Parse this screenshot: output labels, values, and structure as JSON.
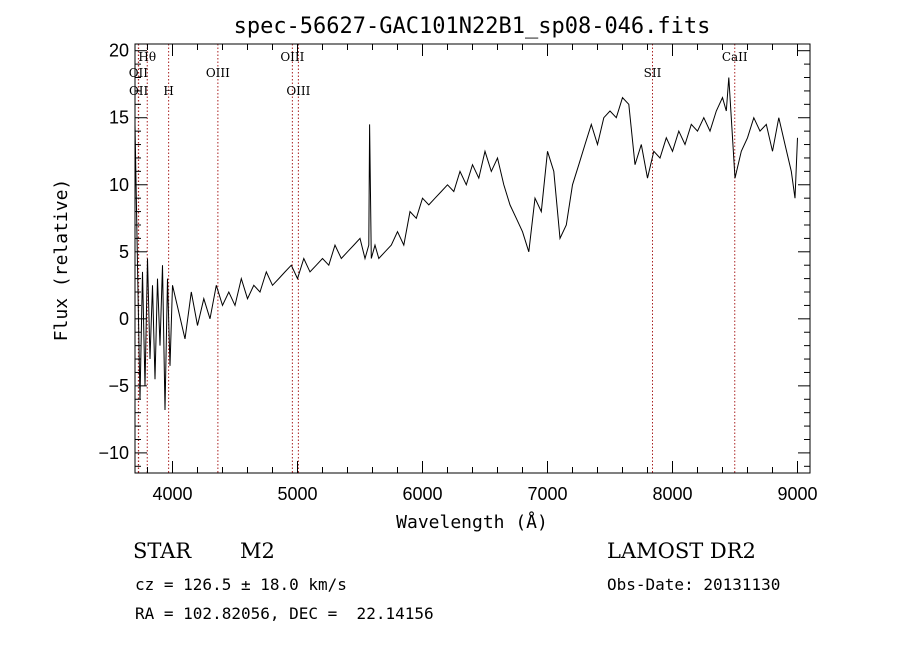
{
  "chart_data": {
    "type": "line",
    "title": "spec-56627-GAC101N22B1_sp08-046.fits",
    "xlabel": "Wavelength (Å)",
    "ylabel": "Flux (relative)",
    "xlim": [
      3700,
      9100
    ],
    "ylim": [
      -11.5,
      20.5
    ],
    "xticks": [
      4000,
      5000,
      6000,
      7000,
      8000,
      9000
    ],
    "yticks": [
      -10,
      -5,
      0,
      5,
      10,
      15,
      20
    ],
    "grid": false,
    "legend": "none",
    "line_color": "#000000",
    "marker_color": "#aa2222",
    "spectral_lines": [
      {
        "label": "Hθ",
        "wavelength": 3798,
        "row": 0
      },
      {
        "label": "OII",
        "wavelength": 3727,
        "row": 1
      },
      {
        "label": "OII",
        "wavelength": 3729,
        "row": 2
      },
      {
        "label": "H",
        "wavelength": 3969,
        "row": 2
      },
      {
        "label": "OIII",
        "wavelength": 4363,
        "row": 1
      },
      {
        "label": "OIII",
        "wavelength": 4959,
        "row": 0
      },
      {
        "label": "OIII",
        "wavelength": 5007,
        "row": 2
      },
      {
        "label": "SII",
        "wavelength": 7840,
        "row": 1
      },
      {
        "label": "CaII",
        "wavelength": 8498,
        "row": 0
      }
    ],
    "series": [
      {
        "x": [
          3700,
          3720,
          3740,
          3760,
          3780,
          3800,
          3820,
          3840,
          3860,
          3880,
          3900,
          3920,
          3940,
          3960,
          3980,
          4000,
          4050,
          4100,
          4150,
          4200,
          4250,
          4300,
          4350,
          4400,
          4450,
          4500,
          4550,
          4600,
          4650,
          4700,
          4750,
          4800,
          4850,
          4900,
          4950,
          5000,
          5050,
          5100,
          5150,
          5200,
          5250,
          5300,
          5350,
          5400,
          5450,
          5500,
          5540,
          5570,
          5577,
          5590,
          5620,
          5650,
          5700,
          5750,
          5800,
          5850,
          5900,
          5950,
          6000,
          6050,
          6100,
          6150,
          6200,
          6250,
          6300,
          6350,
          6400,
          6450,
          6500,
          6550,
          6600,
          6650,
          6700,
          6750,
          6800,
          6850,
          6900,
          6950,
          7000,
          7050,
          7100,
          7150,
          7200,
          7250,
          7300,
          7350,
          7400,
          7450,
          7500,
          7550,
          7600,
          7650,
          7700,
          7750,
          7800,
          7850,
          7900,
          7950,
          8000,
          8050,
          8100,
          8150,
          8200,
          8250,
          8300,
          8350,
          8400,
          8430,
          8450,
          8500,
          8550,
          8600,
          8650,
          8700,
          8750,
          8800,
          8850,
          8900,
          8950,
          8980,
          9000
        ],
        "y": [
          14.5,
          4.0,
          -6.0,
          3.5,
          -5.0,
          4.5,
          -3.0,
          2.5,
          -4.5,
          3.0,
          -2.0,
          4.0,
          -6.8,
          3.0,
          -3.5,
          2.5,
          0.5,
          -1.5,
          2.0,
          -0.5,
          1.5,
          0.0,
          2.5,
          1.0,
          2.0,
          1.0,
          3.0,
          1.5,
          2.5,
          2.0,
          3.5,
          2.5,
          3.0,
          3.5,
          4.0,
          3.0,
          4.5,
          3.5,
          4.0,
          4.5,
          4.0,
          5.5,
          4.5,
          5.0,
          5.5,
          6.0,
          4.5,
          5.5,
          14.5,
          4.5,
          5.5,
          4.5,
          5.0,
          5.5,
          6.5,
          5.5,
          8.0,
          7.5,
          9.0,
          8.5,
          9.0,
          9.5,
          10.0,
          9.5,
          11.0,
          10.0,
          11.5,
          10.5,
          12.5,
          11.0,
          12.0,
          10.0,
          8.5,
          7.5,
          6.5,
          5.0,
          9.0,
          8.0,
          12.5,
          11.0,
          6.0,
          7.0,
          10.0,
          11.5,
          13.0,
          14.5,
          13.0,
          15.0,
          15.5,
          15.0,
          16.5,
          16.0,
          11.5,
          13.0,
          10.5,
          12.5,
          12.0,
          13.5,
          12.5,
          14.0,
          13.0,
          14.5,
          14.0,
          15.0,
          14.0,
          15.5,
          16.5,
          15.5,
          18.0,
          10.5,
          12.5,
          13.5,
          15.0,
          14.0,
          14.5,
          12.5,
          15.0,
          13.0,
          11.0,
          9.0,
          13.5
        ]
      }
    ]
  },
  "info": {
    "object_type": "STAR",
    "subclass": "M2",
    "survey": "LAMOST DR2",
    "redshift": "cz = 126.5 ± 18.0 km/s",
    "obs_date": "Obs-Date: 20131130",
    "coords": "RA = 102.82056, DEC =  22.14156"
  }
}
